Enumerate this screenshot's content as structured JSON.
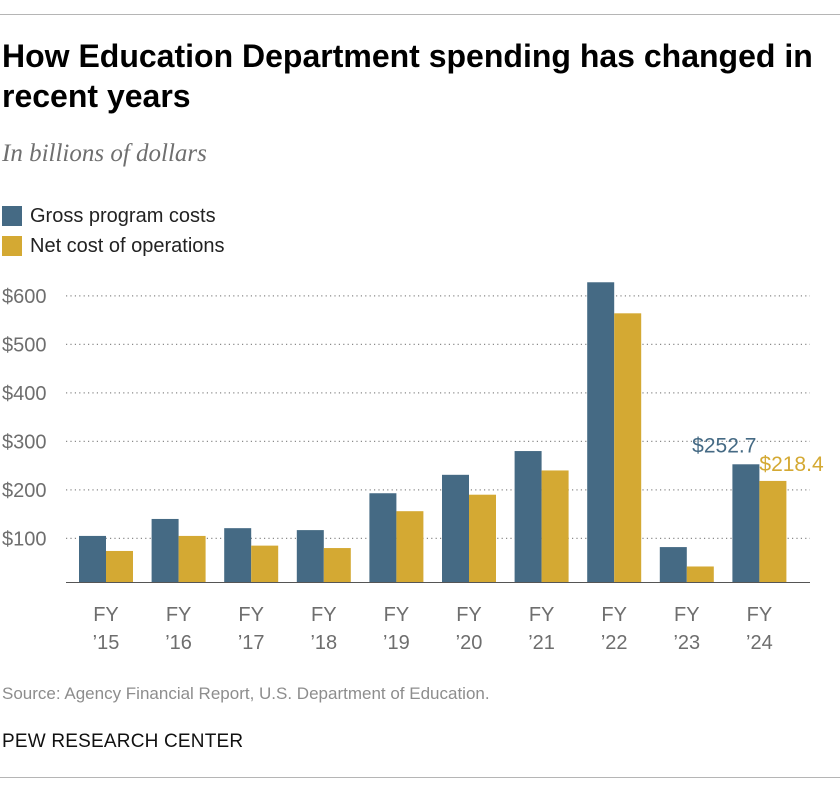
{
  "header": {
    "title": "How Education Department spending has changed in recent years",
    "subtitle": "In billions of dollars"
  },
  "legend": [
    {
      "label": "Gross program costs",
      "color": "#456a84"
    },
    {
      "label": "Net cost of operations",
      "color": "#d4a933"
    }
  ],
  "chart_data": {
    "type": "bar",
    "title": "How Education Department spending has changed in recent years",
    "ylabel": "In billions of dollars",
    "xlabel": "",
    "categories": [
      [
        "FY",
        "’15"
      ],
      [
        "FY",
        "’16"
      ],
      [
        "FY",
        "’17"
      ],
      [
        "FY",
        "’18"
      ],
      [
        "FY",
        "’19"
      ],
      [
        "FY",
        "’20"
      ],
      [
        "FY",
        "’21"
      ],
      [
        "FY",
        "’22"
      ],
      [
        "FY",
        "’23"
      ],
      [
        "FY",
        "’24"
      ]
    ],
    "series": [
      {
        "name": "Gross program costs",
        "color": "#456a84",
        "values": [
          105,
          140,
          121,
          117,
          193,
          231,
          280,
          628,
          82,
          252.7
        ]
      },
      {
        "name": "Net cost of operations",
        "color": "#d4a933",
        "values": [
          74,
          105,
          85,
          80,
          156,
          190,
          240,
          564,
          42,
          218.4
        ]
      }
    ],
    "ylim": [
      10,
      620
    ],
    "yticks": [
      100,
      200,
      300,
      400,
      500,
      600
    ],
    "ytick_labels": [
      "$100",
      "$200",
      "$300",
      "$400",
      "$500",
      "$600"
    ],
    "grid": true,
    "annotations": [
      {
        "series": 0,
        "index": 9,
        "text": "$252.7",
        "color": "#456a84"
      },
      {
        "series": 1,
        "index": 9,
        "text": "$218.4",
        "color": "#d4a933"
      }
    ]
  },
  "footer": {
    "source": "Source: Agency Financial Report, U.S. Department of Education.",
    "organization": "PEW RESEARCH CENTER"
  }
}
